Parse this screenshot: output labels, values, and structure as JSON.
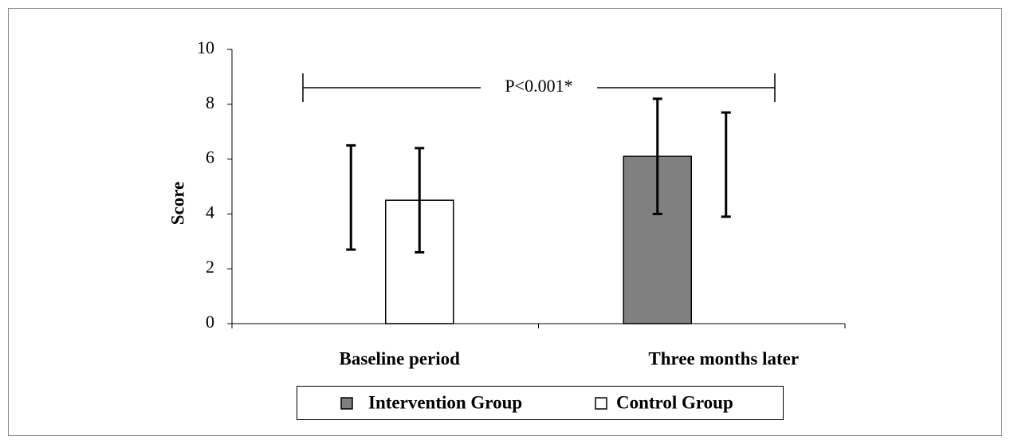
{
  "chart_data": {
    "type": "bar",
    "y_label": "Score",
    "annotation": "P<0.001*",
    "categories": [
      "Baseline period",
      "Three months later"
    ],
    "series": [
      {
        "name": "Intervention Group",
        "color": "#808080",
        "values": [
          null,
          6.1
        ],
        "lower": [
          2.7,
          4.0
        ],
        "upper": [
          6.5,
          8.2
        ]
      },
      {
        "name": "Control Group",
        "color": "#ffffff",
        "values": [
          4.5,
          null
        ],
        "lower": [
          2.6,
          3.9
        ],
        "upper": [
          6.4,
          7.7
        ]
      }
    ],
    "ylim": [
      0,
      10
    ],
    "yticks": [
      0,
      2,
      4,
      6,
      8,
      10
    ],
    "grid": false,
    "legend": "bottom"
  }
}
